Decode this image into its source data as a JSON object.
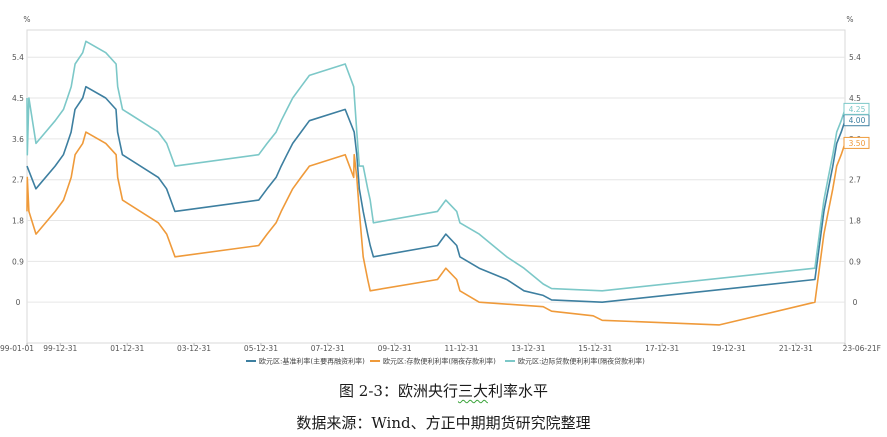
{
  "caption": {
    "title": "图 2-3：欧洲央行三大利率水平",
    "source": "数据来源：Wind、方正中期期货研究院整理"
  },
  "chart_data": {
    "type": "line",
    "y_unit_left": "%",
    "y_unit_right": "%",
    "ylim": [
      -0.9,
      6.0
    ],
    "y_ticks": [
      0,
      0.9,
      1.8,
      2.7,
      3.6,
      4.5,
      5.4
    ],
    "y_tick_labels": [
      "0",
      "0.9",
      "1.8",
      "2.7",
      "3.6",
      "4.5",
      "5.4"
    ],
    "x_range": [
      "1999-01-01",
      "2023-06-21"
    ],
    "x_ticks": [
      "1999-01-01",
      "1999-12-31",
      "2001-12-31",
      "2003-12-31",
      "2005-12-31",
      "2007-12-31",
      "2009-12-31",
      "2011-12-31",
      "2013-12-31",
      "2015-12-31",
      "2017-12-31",
      "2019-12-31",
      "2021-12-31",
      "2023-06-21"
    ],
    "x_tick_labels": [
      "99-01-01",
      "99-12-31",
      "01-12-31",
      "03-12-31",
      "05-12-31",
      "07-12-31",
      "09-12-31",
      "11-12-31",
      "13-12-31",
      "15-12-31",
      "17-12-31",
      "19-12-31",
      "21-12-31",
      "23-06-21F"
    ],
    "grid": true,
    "legend_position": "bottom",
    "series": [
      {
        "name": "欧元区:基准利率(主要再融资利率)",
        "color": "#3d7fa0",
        "end_label": "4.00",
        "points": [
          [
            "1999-01-01",
            3.0
          ],
          [
            "1999-04-08",
            2.5
          ],
          [
            "1999-11-04",
            3.0
          ],
          [
            "2000-02-03",
            3.25
          ],
          [
            "2000-03-16",
            3.5
          ],
          [
            "2000-04-27",
            3.75
          ],
          [
            "2000-06-08",
            4.25
          ],
          [
            "2000-09-01",
            4.5
          ],
          [
            "2000-10-05",
            4.75
          ],
          [
            "2001-05-10",
            4.5
          ],
          [
            "2001-08-30",
            4.25
          ],
          [
            "2001-09-17",
            3.75
          ],
          [
            "2001-11-08",
            3.25
          ],
          [
            "2002-12-05",
            2.75
          ],
          [
            "2003-03-06",
            2.5
          ],
          [
            "2003-06-05",
            2.0
          ],
          [
            "2005-12-06",
            2.25
          ],
          [
            "2006-03-08",
            2.5
          ],
          [
            "2006-06-15",
            2.75
          ],
          [
            "2006-08-09",
            3.0
          ],
          [
            "2006-10-11",
            3.25
          ],
          [
            "2006-12-13",
            3.5
          ],
          [
            "2007-03-14",
            3.75
          ],
          [
            "2007-06-13",
            4.0
          ],
          [
            "2008-07-09",
            4.25
          ],
          [
            "2008-10-15",
            3.75
          ],
          [
            "2008-11-12",
            3.25
          ],
          [
            "2008-12-10",
            2.5
          ],
          [
            "2009-01-21",
            2.0
          ],
          [
            "2009-03-11",
            1.5
          ],
          [
            "2009-04-08",
            1.25
          ],
          [
            "2009-05-13",
            1.0
          ],
          [
            "2011-04-13",
            1.25
          ],
          [
            "2011-07-13",
            1.5
          ],
          [
            "2011-11-09",
            1.25
          ],
          [
            "2011-12-14",
            1.0
          ],
          [
            "2012-07-11",
            0.75
          ],
          [
            "2013-05-08",
            0.5
          ],
          [
            "2013-11-13",
            0.25
          ],
          [
            "2014-06-11",
            0.15
          ],
          [
            "2014-09-10",
            0.05
          ],
          [
            "2016-03-16",
            0.0
          ],
          [
            "2022-07-27",
            0.5
          ],
          [
            "2022-09-14",
            1.25
          ],
          [
            "2022-11-02",
            2.0
          ],
          [
            "2022-12-21",
            2.5
          ],
          [
            "2023-02-08",
            3.0
          ],
          [
            "2023-03-22",
            3.5
          ],
          [
            "2023-05-10",
            3.75
          ],
          [
            "2023-06-21",
            4.0
          ]
        ]
      },
      {
        "name": "欧元区:存款便利利率(隔夜存款利率)",
        "color": "#ef9a3a",
        "end_label": "3.50",
        "points": [
          [
            "1999-01-01",
            2.0
          ],
          [
            "1999-01-04",
            2.75
          ],
          [
            "1999-01-22",
            2.0
          ],
          [
            "1999-04-09",
            1.5
          ],
          [
            "1999-11-05",
            2.0
          ],
          [
            "2000-02-04",
            2.25
          ],
          [
            "2000-03-17",
            2.5
          ],
          [
            "2000-04-28",
            2.75
          ],
          [
            "2000-06-09",
            3.25
          ],
          [
            "2000-09-01",
            3.5
          ],
          [
            "2000-10-06",
            3.75
          ],
          [
            "2001-05-11",
            3.5
          ],
          [
            "2001-08-31",
            3.25
          ],
          [
            "2001-09-18",
            2.75
          ],
          [
            "2001-11-09",
            2.25
          ],
          [
            "2002-12-06",
            1.75
          ],
          [
            "2003-03-07",
            1.5
          ],
          [
            "2003-06-06",
            1.0
          ],
          [
            "2005-12-06",
            1.25
          ],
          [
            "2006-03-08",
            1.5
          ],
          [
            "2006-06-15",
            1.75
          ],
          [
            "2006-08-09",
            2.0
          ],
          [
            "2006-10-11",
            2.25
          ],
          [
            "2006-12-13",
            2.5
          ],
          [
            "2007-03-14",
            2.75
          ],
          [
            "2007-06-13",
            3.0
          ],
          [
            "2008-07-09",
            3.25
          ],
          [
            "2008-10-09",
            2.75
          ],
          [
            "2008-10-15",
            3.25
          ],
          [
            "2008-11-12",
            2.75
          ],
          [
            "2008-12-10",
            2.0
          ],
          [
            "2009-01-21",
            1.0
          ],
          [
            "2009-03-11",
            0.5
          ],
          [
            "2009-04-08",
            0.25
          ],
          [
            "2011-04-13",
            0.5
          ],
          [
            "2011-07-13",
            0.75
          ],
          [
            "2011-11-09",
            0.5
          ],
          [
            "2011-12-14",
            0.25
          ],
          [
            "2012-07-11",
            0.0
          ],
          [
            "2014-06-11",
            -0.1
          ],
          [
            "2014-09-10",
            -0.2
          ],
          [
            "2015-12-09",
            -0.3
          ],
          [
            "2016-03-16",
            -0.4
          ],
          [
            "2019-09-18",
            -0.5
          ],
          [
            "2022-07-27",
            0.0
          ],
          [
            "2022-09-14",
            0.75
          ],
          [
            "2022-11-02",
            1.5
          ],
          [
            "2022-12-21",
            2.0
          ],
          [
            "2023-02-08",
            2.5
          ],
          [
            "2023-03-22",
            3.0
          ],
          [
            "2023-05-10",
            3.25
          ],
          [
            "2023-06-21",
            3.5
          ]
        ]
      },
      {
        "name": "欧元区:边际贷款便利利率(隔夜贷款利率)",
        "color": "#7cc8c8",
        "end_label": "4.25",
        "points": [
          [
            "1999-01-01",
            4.5
          ],
          [
            "1999-01-04",
            3.25
          ],
          [
            "1999-01-22",
            4.5
          ],
          [
            "1999-04-09",
            3.5
          ],
          [
            "1999-11-05",
            4.0
          ],
          [
            "2000-02-04",
            4.25
          ],
          [
            "2000-03-17",
            4.5
          ],
          [
            "2000-04-28",
            4.75
          ],
          [
            "2000-06-09",
            5.25
          ],
          [
            "2000-09-01",
            5.5
          ],
          [
            "2000-10-06",
            5.75
          ],
          [
            "2001-05-11",
            5.5
          ],
          [
            "2001-08-31",
            5.25
          ],
          [
            "2001-09-18",
            4.75
          ],
          [
            "2001-11-09",
            4.25
          ],
          [
            "2002-12-06",
            3.75
          ],
          [
            "2003-03-07",
            3.5
          ],
          [
            "2003-06-06",
            3.0
          ],
          [
            "2005-12-06",
            3.25
          ],
          [
            "2006-03-08",
            3.5
          ],
          [
            "2006-06-15",
            3.75
          ],
          [
            "2006-08-09",
            4.0
          ],
          [
            "2006-10-11",
            4.25
          ],
          [
            "2006-12-13",
            4.5
          ],
          [
            "2007-03-14",
            4.75
          ],
          [
            "2007-06-13",
            5.0
          ],
          [
            "2008-07-09",
            5.25
          ],
          [
            "2008-10-09",
            4.75
          ],
          [
            "2008-11-12",
            3.75
          ],
          [
            "2008-12-10",
            3.0
          ],
          [
            "2009-01-21",
            3.0
          ],
          [
            "2009-03-11",
            2.5
          ],
          [
            "2009-04-08",
            2.25
          ],
          [
            "2009-05-13",
            1.75
          ],
          [
            "2011-04-13",
            2.0
          ],
          [
            "2011-07-13",
            2.25
          ],
          [
            "2011-11-09",
            2.0
          ],
          [
            "2011-12-14",
            1.75
          ],
          [
            "2012-07-11",
            1.5
          ],
          [
            "2013-05-08",
            1.0
          ],
          [
            "2013-11-13",
            0.75
          ],
          [
            "2014-06-11",
            0.4
          ],
          [
            "2014-09-10",
            0.3
          ],
          [
            "2016-03-16",
            0.25
          ],
          [
            "2022-07-27",
            0.75
          ],
          [
            "2022-09-14",
            1.5
          ],
          [
            "2022-11-02",
            2.25
          ],
          [
            "2022-12-21",
            2.75
          ],
          [
            "2023-02-08",
            3.25
          ],
          [
            "2023-03-22",
            3.75
          ],
          [
            "2023-05-10",
            4.0
          ],
          [
            "2023-06-21",
            4.25
          ]
        ]
      }
    ]
  }
}
